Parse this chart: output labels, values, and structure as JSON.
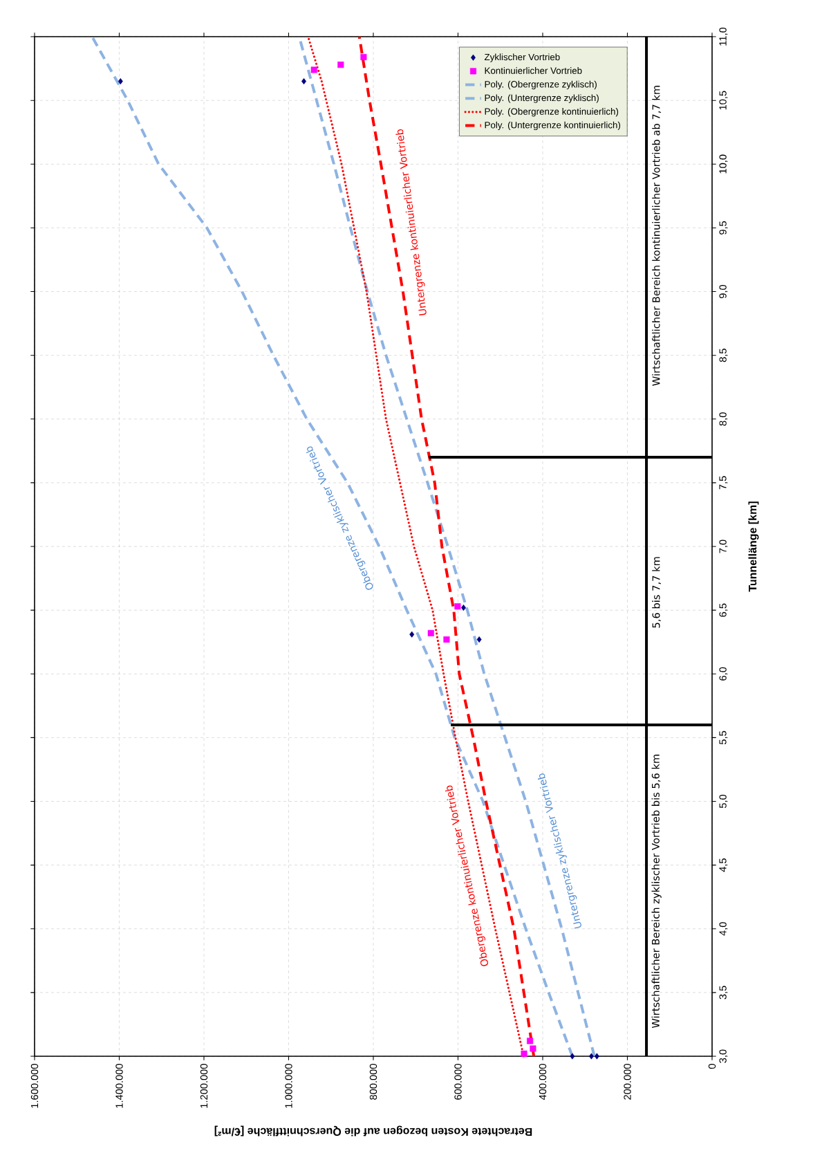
{
  "chart_data": {
    "type": "line",
    "xlabel": "Betrachtete Kosten bezogen auf die Querschnittfläche [€/m²]",
    "ylabel": "Tunnellänge [km]",
    "xlim": [
      1600000,
      0
    ],
    "ylim": [
      3.0,
      11.0
    ],
    "xticks": [
      {
        "value": 0,
        "label": "0"
      },
      {
        "value": 200000,
        "label": "200.000"
      },
      {
        "value": 400000,
        "label": "400.000"
      },
      {
        "value": 600000,
        "label": "600.000"
      },
      {
        "value": 800000,
        "label": "800.000"
      },
      {
        "value": 1000000,
        "label": "1.000.000"
      },
      {
        "value": 1200000,
        "label": "1.200.000"
      },
      {
        "value": 1400000,
        "label": "1.400.000"
      },
      {
        "value": 1600000,
        "label": "1.600.000"
      }
    ],
    "yticks": [
      {
        "value": 3.0,
        "label": "3,0"
      },
      {
        "value": 3.5,
        "label": "3,5"
      },
      {
        "value": 4.0,
        "label": "4,0"
      },
      {
        "value": 4.5,
        "label": "4,5"
      },
      {
        "value": 5.0,
        "label": "5,0"
      },
      {
        "value": 5.5,
        "label": "5,5"
      },
      {
        "value": 6.0,
        "label": "6,0"
      },
      {
        "value": 6.5,
        "label": "6,5"
      },
      {
        "value": 7.0,
        "label": "7,0"
      },
      {
        "value": 7.5,
        "label": "7,5"
      },
      {
        "value": 8.0,
        "label": "8,0"
      },
      {
        "value": 8.5,
        "label": "8,5"
      },
      {
        "value": 9.0,
        "label": "9,0"
      },
      {
        "value": 9.5,
        "label": "9,5"
      },
      {
        "value": 10.0,
        "label": "10,0"
      },
      {
        "value": 10.5,
        "label": "10,5"
      },
      {
        "value": 11.0,
        "label": "11,0"
      }
    ],
    "grid": true,
    "legend": "top right",
    "series": [
      {
        "name": "Zyklischer Vortrieb",
        "type": "scatter",
        "marker": "diamond",
        "color": "#000080",
        "x": [
          1397000,
          964000,
          709000,
          587000,
          550000,
          330000,
          285000,
          272000
        ],
        "values": [
          10.65,
          10.65,
          6.31,
          6.52,
          6.27,
          3.0,
          3.0,
          3.0
        ]
      },
      {
        "name": "Kontinuierlicher Vortrieb",
        "type": "scatter",
        "marker": "square",
        "color": "#ff00ff",
        "x": [
          940000,
          877000,
          823000,
          664000,
          627000,
          601000,
          444000,
          430000,
          423000
        ],
        "values": [
          10.74,
          10.78,
          10.84,
          6.32,
          6.27,
          6.53,
          3.02,
          3.12,
          3.06
        ]
      },
      {
        "name": "Poly. (Obergrenze zyklisch)",
        "line_style": "dashed",
        "color": "#8db3e2",
        "x": [
          330000,
          386000,
          440000,
          491000,
          541000,
          608000,
          652000,
          721000,
          786000,
          861000,
          957000,
          1036000,
          1110000,
          1193000,
          1307000,
          1380000,
          1464000
        ],
        "values": [
          3.0,
          3.5,
          4.0,
          4.5,
          5.0,
          5.5,
          6.0,
          6.5,
          7.0,
          7.5,
          8.0,
          8.5,
          9.0,
          9.5,
          10.0,
          10.5,
          11.0
        ]
      },
      {
        "name": "Poly. (Untergrenze zyklisch)",
        "line_style": "dashed",
        "color": "#8db3e2",
        "x": [
          278000,
          355000,
          440000,
          489000,
          538000,
          578000,
          624000,
          672000,
          721000,
          770000,
          814000,
          854000,
          893000,
          934000,
          975000
        ],
        "values": [
          3.0,
          4.0,
          5.0,
          5.5,
          6.0,
          6.5,
          7.0,
          7.5,
          8.0,
          8.5,
          9.0,
          9.5,
          10.0,
          10.5,
          11.0
        ]
      },
      {
        "name": "Poly. (Obergrenze kontinuierlich)",
        "line_style": "dotted",
        "color": "#ff0000",
        "x": [
          445000,
          512000,
          576000,
          606000,
          634000,
          660000,
          704000,
          770000,
          816000,
          875000,
          922000,
          954000
        ],
        "values": [
          3.0,
          4.0,
          5.0,
          5.5,
          6.0,
          6.5,
          7.0,
          8.0,
          9.0,
          10.0,
          10.65,
          11.0
        ]
      },
      {
        "name": "Poly. (Untergrenze kontinuierlich)",
        "line_style": "dashed",
        "color": "#ff0000",
        "x": [
          421000,
          468000,
          534000,
          564000,
          597000,
          610000,
          638000,
          655000,
          686000,
          730000,
          782000,
          809000,
          833000
        ],
        "values": [
          3.0,
          4.0,
          5.0,
          5.5,
          6.0,
          6.5,
          7.0,
          7.5,
          8.0,
          9.0,
          10.0,
          10.5,
          11.0
        ]
      },
      {
        "line_style": "solid",
        "color": "#000000",
        "x": [
          0,
          617000
        ],
        "values": [
          5.6,
          5.6
        ]
      },
      {
        "line_style": "solid",
        "color": "#000000",
        "x": [
          0,
          669000
        ],
        "values": [
          7.7,
          7.7
        ]
      },
      {
        "line_style": "solid",
        "color": "#000000",
        "x": [
          155000,
          155000
        ],
        "values": [
          3.0,
          11.0
        ]
      }
    ],
    "annotations": [
      "Obergrenze zyklischer Vortrieb",
      "Untergrenze zyklischer Vortrieb",
      "Obergrenze kontinuierlicher Vortrieb",
      "Untergrenze kontinuierlicher Vortrieb",
      "Wirtschaftlicher Bereich zyklischer Vortrieb bis 5,6 km",
      "5,6 bis 7,7 km",
      "Wirtschaftlicher Bereich kontinuierlicher Vortrieb ab 7,7 km"
    ]
  }
}
